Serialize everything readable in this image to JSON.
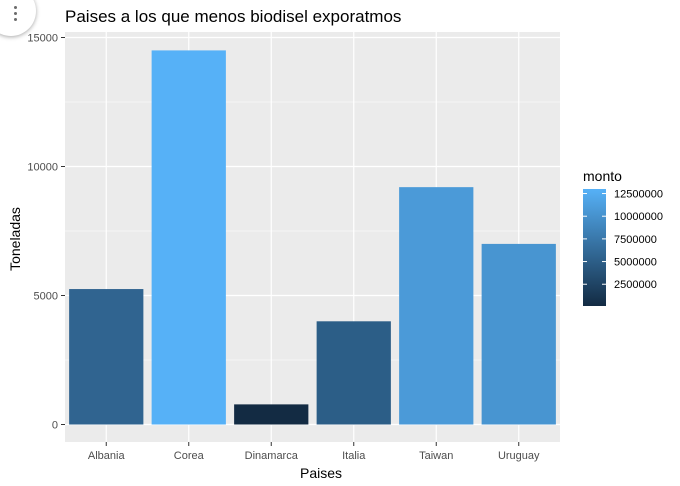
{
  "chart_data": {
    "type": "bar",
    "title": "Paises a los que menos biodisel exporatmos",
    "xlabel": "Paises",
    "ylabel": "Toneladas",
    "categories": [
      "Albania",
      "Corea",
      "Dinamarca",
      "Italia",
      "Taiwan",
      "Uruguay"
    ],
    "values": [
      5250,
      14500,
      780,
      4000,
      9200,
      7000
    ],
    "color_values": [
      5600000,
      13000000,
      100000,
      5000000,
      10800000,
      10300000
    ],
    "ylim": [
      -500,
      15200
    ],
    "yticks": [
      0,
      5000,
      10000,
      15000
    ],
    "ytick_labels": [
      "0",
      "5000",
      "10000",
      "15000"
    ],
    "grid": true,
    "legend": {
      "title": "monto",
      "placement": "right",
      "breaks": [
        2500000,
        5000000,
        7500000,
        10000000,
        12500000
      ],
      "labels": [
        "2500000",
        "5000000",
        "7500000",
        "10000000",
        "12500000"
      ],
      "limits": [
        100000,
        13000000
      ],
      "low_color": "#132B43",
      "high_color": "#56B1F7"
    },
    "colors": {
      "panel": "#ebebeb",
      "grid": "#ffffff",
      "text": "#4d4d4d"
    }
  }
}
